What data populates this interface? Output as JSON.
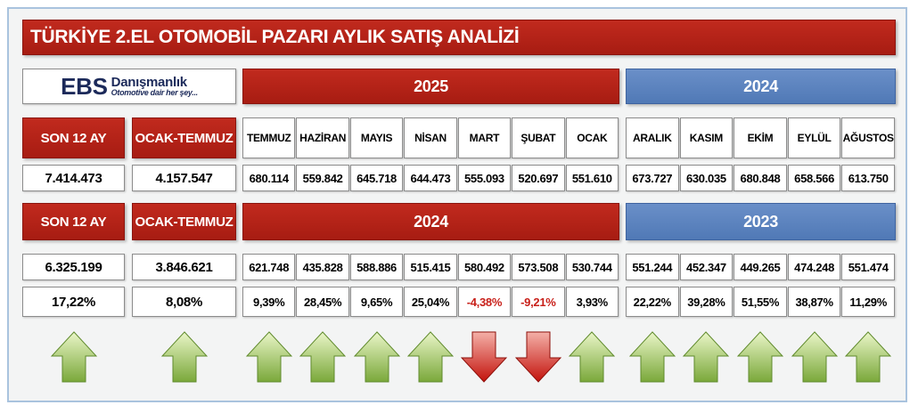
{
  "title": "TÜRKİYE 2.EL OTOMOBİL PAZARI AYLIK SATIŞ ANALİZİ",
  "logo": {
    "brand": "EBS",
    "name": "Danışmanlık",
    "tagline": "Otomotive dair her şey..."
  },
  "months": [
    "TEMMUZ",
    "HAZİRAN",
    "MAYIS",
    "NİSAN",
    "MART",
    "ŞUBAT",
    "OCAK",
    "ARALIK",
    "KASIM",
    "EKİM",
    "EYLÜL",
    "AĞUSTOS"
  ],
  "blocks": [
    {
      "total_label": "SON 12 AY",
      "ytd_label": "OCAK-TEMMUZ",
      "year_a": "2025",
      "year_b": "2024",
      "total": "7.414.473",
      "ytd": "4.157.547",
      "values": [
        "680.114",
        "559.842",
        "645.718",
        "644.473",
        "555.093",
        "520.697",
        "551.610",
        "673.727",
        "630.035",
        "680.848",
        "658.566",
        "613.750"
      ]
    },
    {
      "total_label": "SON 12 AY",
      "ytd_label": "OCAK-TEMMUZ",
      "year_a": "2024",
      "year_b": "2023",
      "total": "6.325.199",
      "ytd": "3.846.621",
      "values": [
        "621.748",
        "435.828",
        "588.886",
        "515.415",
        "580.492",
        "573.508",
        "530.744",
        "551.244",
        "452.347",
        "449.265",
        "474.248",
        "551.474"
      ]
    }
  ],
  "changes": {
    "total": "17,22%",
    "ytd": "8,08%",
    "values": [
      "9,39%",
      "28,45%",
      "9,65%",
      "25,04%",
      "-4,38%",
      "-9,21%",
      "3,93%",
      "22,22%",
      "39,28%",
      "51,55%",
      "38,87%",
      "11,29%"
    ]
  }
}
